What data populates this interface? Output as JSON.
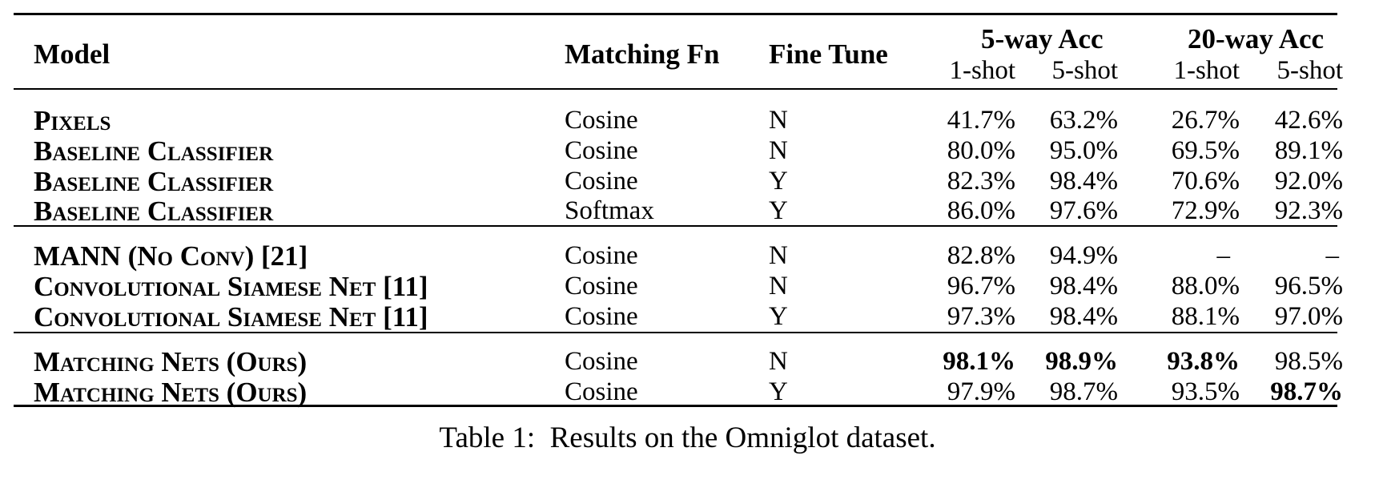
{
  "table": {
    "headers": {
      "model": "Model",
      "matching_fn": "Matching Fn",
      "fine_tune": "Fine Tune",
      "five_way": "5-way Acc",
      "twenty_way": "20-way Acc",
      "one_shot": "1-shot",
      "five_shot": "5-shot"
    },
    "rows": [
      {
        "model": "Pixels",
        "fn": "Cosine",
        "ft": "N",
        "v1": "41.7%",
        "v2": "63.2%",
        "v3": "26.7%",
        "v4": "42.6%"
      },
      {
        "model": "Baseline Classifier",
        "fn": "Cosine",
        "ft": "N",
        "v1": "80.0%",
        "v2": "95.0%",
        "v3": "69.5%",
        "v4": "89.1%"
      },
      {
        "model": "Baseline Classifier",
        "fn": "Cosine",
        "ft": "Y",
        "v1": "82.3%",
        "v2": "98.4%",
        "v3": "70.6%",
        "v4": "92.0%"
      },
      {
        "model": "Baseline Classifier",
        "fn": "Softmax",
        "ft": "Y",
        "v1": "86.0%",
        "v2": "97.6%",
        "v3": "72.9%",
        "v4": "92.3%"
      },
      {
        "model": "MANN (No Conv) [21]",
        "fn": "Cosine",
        "ft": "N",
        "v1": "82.8%",
        "v2": "94.9%",
        "v3": "–",
        "v4": "–"
      },
      {
        "model": "Convolutional Siamese Net [11]",
        "fn": "Cosine",
        "ft": "N",
        "v1": "96.7%",
        "v2": "98.4%",
        "v3": "88.0%",
        "v4": "96.5%"
      },
      {
        "model": "Convolutional Siamese Net [11]",
        "fn": "Cosine",
        "ft": "Y",
        "v1": "97.3%",
        "v2": "98.4%",
        "v3": "88.1%",
        "v4": "97.0%"
      },
      {
        "model": "Matching Nets (Ours)",
        "fn": "Cosine",
        "ft": "N",
        "v1": "98.1%",
        "v2": "98.9%",
        "v3": "93.8%",
        "v4": "98.5%"
      },
      {
        "model": "Matching Nets (Ours)",
        "fn": "Cosine",
        "ft": "Y",
        "v1": "97.9%",
        "v2": "98.7%",
        "v3": "93.5%",
        "v4": "98.7%"
      }
    ]
  },
  "caption": "Table 1:  Results on the Omniglot dataset."
}
